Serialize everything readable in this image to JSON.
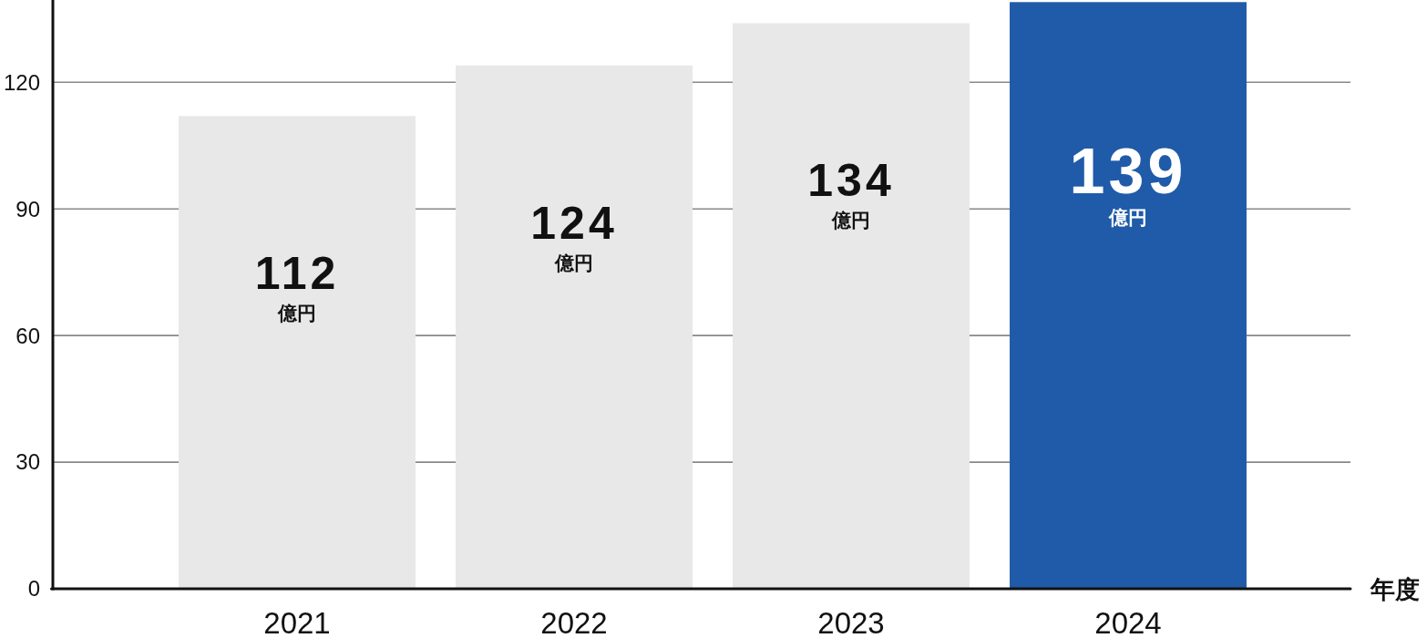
{
  "chart_data": {
    "type": "bar",
    "categories": [
      "2021",
      "2022",
      "2023",
      "2024"
    ],
    "values": [
      112,
      124,
      134,
      139
    ],
    "colors": [
      "#e8e8e8",
      "#e8e8e8",
      "#e8e8e8",
      "#1f5ba8"
    ],
    "value_labels": [
      "112 億円",
      "124 億円",
      "134 億円",
      "139 億円"
    ],
    "xlabel": "年度",
    "ylim": [
      0,
      139.5
    ],
    "yticks": [
      0,
      30,
      60,
      90,
      120
    ],
    "grid": "y"
  }
}
